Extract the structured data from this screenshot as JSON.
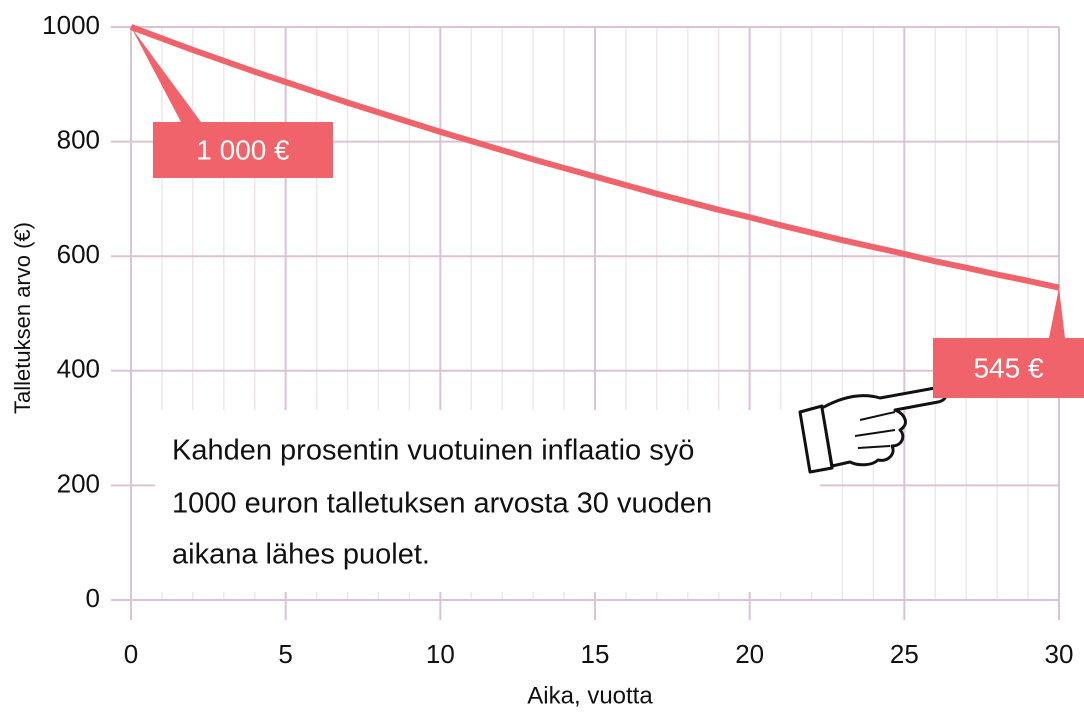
{
  "chart_data": {
    "type": "line",
    "xlabel": "Aika, vuotta",
    "ylabel": "Talletuksen arvo (€)",
    "annotation": [
      "Kahden prosentin vuotuinen inflaatio syö",
      "1000 euron talletuksen arvosta 30 vuoden",
      "aikana lähes puolet."
    ],
    "x": [
      0,
      1,
      2,
      3,
      4,
      5,
      6,
      7,
      8,
      9,
      10,
      11,
      12,
      13,
      14,
      15,
      16,
      17,
      18,
      19,
      20,
      21,
      22,
      23,
      24,
      25,
      26,
      27,
      28,
      29,
      30
    ],
    "series": [
      {
        "name": "Talletuksen arvo",
        "color": "#f0636a",
        "values": [
          1000,
          980,
          960,
          941,
          922,
          904,
          886,
          868,
          851,
          834,
          817,
          801,
          785,
          769,
          754,
          739,
          724,
          709,
          695,
          681,
          668,
          654,
          641,
          628,
          616,
          604,
          591,
          580,
          568,
          557,
          545
        ],
        "value_labels": [
          "1 000 €",
          null,
          null,
          null,
          null,
          null,
          null,
          null,
          null,
          null,
          null,
          null,
          null,
          null,
          null,
          null,
          null,
          null,
          null,
          null,
          null,
          null,
          null,
          null,
          null,
          null,
          null,
          null,
          null,
          null,
          "545 €"
        ]
      }
    ],
    "xlim": [
      0,
      30
    ],
    "xticks": [
      0,
      5,
      10,
      15,
      20,
      25,
      30
    ],
    "ylim": [
      0,
      1000
    ],
    "yticks": [
      0,
      200,
      400,
      600,
      800,
      1000
    ],
    "grid": true
  }
}
